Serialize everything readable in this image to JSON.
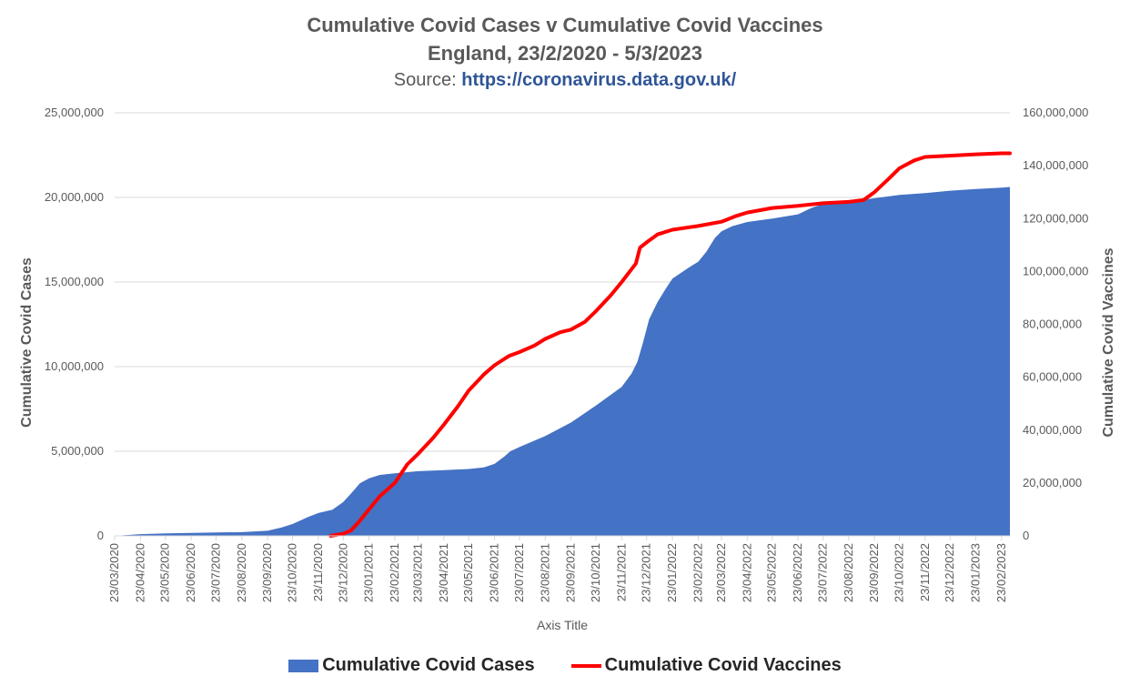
{
  "colors": {
    "cases": "#4472C4",
    "vaccines": "#FF0000",
    "grid": "#D9D9D9",
    "text": "#595959",
    "link": "#2F5597"
  },
  "chart_data": {
    "type": "area+line",
    "title": "Cumulative Covid Cases v Cumulative Covid Vaccines",
    "subtitle": "England, 23/2/2020 - 5/3/2023",
    "source_label": "Source:",
    "source_url": "https://coronavirus.data.gov.uk/",
    "xlabel": "Axis Title",
    "ylabel_left": "Cumulative Covid Cases",
    "ylabel_right": "Cumulative Covid Vaccines",
    "x_start": "23/03/2020",
    "x_end": "05/03/2023",
    "ylim_left": [
      0,
      25000000
    ],
    "ylim_right": [
      0,
      160000000
    ],
    "y_ticks_left": [
      "0",
      "5,000,000",
      "10,000,000",
      "15,000,000",
      "20,000,000",
      "25,000,000"
    ],
    "y_ticks_right": [
      "0",
      "20,000,000",
      "40,000,000",
      "60,000,000",
      "80,000,000",
      "100,000,000",
      "120,000,000",
      "140,000,000",
      "160,000,000"
    ],
    "x_tick_labels": [
      "23/03/2020",
      "23/04/2020",
      "23/05/2020",
      "23/06/2020",
      "23/07/2020",
      "23/08/2020",
      "23/09/2020",
      "23/10/2020",
      "23/11/2020",
      "23/12/2020",
      "23/01/2021",
      "23/02/2021",
      "23/03/2021",
      "23/04/2021",
      "23/05/2021",
      "23/06/2021",
      "23/07/2021",
      "23/08/2021",
      "23/09/2021",
      "23/10/2021",
      "23/11/2021",
      "23/12/2021",
      "23/01/2022",
      "23/02/2022",
      "23/03/2022",
      "23/04/2022",
      "23/05/2022",
      "23/06/2022",
      "23/07/2022",
      "23/08/2022",
      "23/09/2022",
      "23/10/2022",
      "23/11/2022",
      "23/12/2022",
      "23/01/2023",
      "23/02/2023"
    ],
    "grid": true,
    "legend_position": "bottom",
    "series": [
      {
        "name": "Cumulative Covid Cases",
        "kind": "area",
        "axis": "left",
        "points": [
          [
            "2020-03-23",
            0
          ],
          [
            "2020-04-23",
            100000
          ],
          [
            "2020-05-23",
            150000
          ],
          [
            "2020-06-23",
            180000
          ],
          [
            "2020-07-23",
            200000
          ],
          [
            "2020-08-23",
            220000
          ],
          [
            "2020-09-23",
            300000
          ],
          [
            "2020-10-10",
            500000
          ],
          [
            "2020-10-23",
            700000
          ],
          [
            "2020-11-10",
            1100000
          ],
          [
            "2020-11-23",
            1350000
          ],
          [
            "2020-12-10",
            1550000
          ],
          [
            "2020-12-23",
            2000000
          ],
          [
            "2021-01-05",
            2700000
          ],
          [
            "2021-01-12",
            3100000
          ],
          [
            "2021-01-23",
            3400000
          ],
          [
            "2021-02-05",
            3600000
          ],
          [
            "2021-02-23",
            3700000
          ],
          [
            "2021-03-23",
            3820000
          ],
          [
            "2021-04-23",
            3880000
          ],
          [
            "2021-05-23",
            3950000
          ],
          [
            "2021-06-10",
            4050000
          ],
          [
            "2021-06-23",
            4250000
          ],
          [
            "2021-07-05",
            4700000
          ],
          [
            "2021-07-12",
            5000000
          ],
          [
            "2021-07-23",
            5250000
          ],
          [
            "2021-08-23",
            5900000
          ],
          [
            "2021-09-23",
            6700000
          ],
          [
            "2021-10-23",
            7700000
          ],
          [
            "2021-11-23",
            8800000
          ],
          [
            "2021-12-05",
            9600000
          ],
          [
            "2021-12-12",
            10300000
          ],
          [
            "2021-12-19",
            11500000
          ],
          [
            "2021-12-26",
            12800000
          ],
          [
            "2022-01-05",
            13800000
          ],
          [
            "2022-01-15",
            14600000
          ],
          [
            "2022-01-23",
            15200000
          ],
          [
            "2022-02-10",
            15800000
          ],
          [
            "2022-02-23",
            16200000
          ],
          [
            "2022-03-05",
            16800000
          ],
          [
            "2022-03-15",
            17600000
          ],
          [
            "2022-03-23",
            18000000
          ],
          [
            "2022-04-05",
            18300000
          ],
          [
            "2022-04-23",
            18550000
          ],
          [
            "2022-05-23",
            18750000
          ],
          [
            "2022-06-23",
            19000000
          ],
          [
            "2022-07-10",
            19400000
          ],
          [
            "2022-07-23",
            19600000
          ],
          [
            "2022-08-23",
            19750000
          ],
          [
            "2022-09-23",
            19950000
          ],
          [
            "2022-10-23",
            20150000
          ],
          [
            "2022-11-23",
            20250000
          ],
          [
            "2022-12-23",
            20400000
          ],
          [
            "2023-01-23",
            20500000
          ],
          [
            "2023-02-23",
            20580000
          ],
          [
            "2023-03-05",
            20620000
          ]
        ]
      },
      {
        "name": "Cumulative Covid Vaccines",
        "kind": "line",
        "axis": "right",
        "points": [
          [
            "2020-12-08",
            0
          ],
          [
            "2020-12-23",
            800000
          ],
          [
            "2021-01-01",
            2000000
          ],
          [
            "2021-01-10",
            5000000
          ],
          [
            "2021-01-23",
            10000000
          ],
          [
            "2021-02-05",
            15000000
          ],
          [
            "2021-02-23",
            20000000
          ],
          [
            "2021-03-10",
            27000000
          ],
          [
            "2021-03-23",
            31000000
          ],
          [
            "2021-04-10",
            37000000
          ],
          [
            "2021-04-23",
            42000000
          ],
          [
            "2021-05-10",
            49000000
          ],
          [
            "2021-05-23",
            55000000
          ],
          [
            "2021-06-10",
            61000000
          ],
          [
            "2021-06-23",
            64500000
          ],
          [
            "2021-07-10",
            68000000
          ],
          [
            "2021-07-23",
            69500000
          ],
          [
            "2021-08-10",
            72000000
          ],
          [
            "2021-08-23",
            74500000
          ],
          [
            "2021-09-10",
            77000000
          ],
          [
            "2021-09-23",
            78000000
          ],
          [
            "2021-10-10",
            81000000
          ],
          [
            "2021-10-23",
            85000000
          ],
          [
            "2021-11-10",
            91000000
          ],
          [
            "2021-11-23",
            96000000
          ],
          [
            "2021-12-10",
            103000000
          ],
          [
            "2021-12-15",
            109000000
          ],
          [
            "2021-12-23",
            111000000
          ],
          [
            "2022-01-05",
            114000000
          ],
          [
            "2022-01-23",
            115800000
          ],
          [
            "2022-02-23",
            117200000
          ],
          [
            "2022-03-23",
            118800000
          ],
          [
            "2022-04-10",
            121000000
          ],
          [
            "2022-04-23",
            122300000
          ],
          [
            "2022-05-23",
            124000000
          ],
          [
            "2022-06-23",
            124800000
          ],
          [
            "2022-07-23",
            125800000
          ],
          [
            "2022-08-23",
            126300000
          ],
          [
            "2022-09-10",
            127000000
          ],
          [
            "2022-09-23",
            130000000
          ],
          [
            "2022-10-10",
            135000000
          ],
          [
            "2022-10-23",
            139000000
          ],
          [
            "2022-11-10",
            142000000
          ],
          [
            "2022-11-23",
            143300000
          ],
          [
            "2022-12-23",
            143800000
          ],
          [
            "2023-01-23",
            144300000
          ],
          [
            "2023-02-23",
            144700000
          ],
          [
            "2023-03-05",
            144700000
          ]
        ]
      }
    ]
  }
}
